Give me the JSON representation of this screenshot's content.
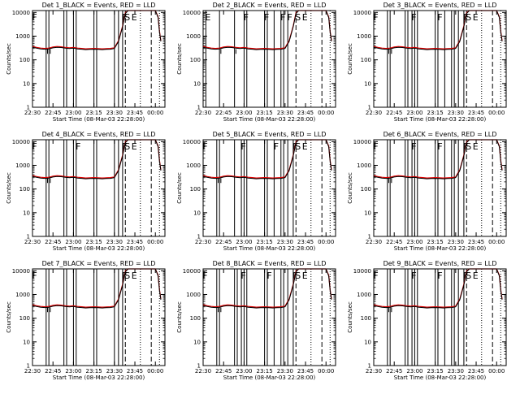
{
  "chart_data": {
    "type": "line",
    "layout": "3x3 grid",
    "shared": {
      "x_ticks": [
        "22:30",
        "22:45",
        "23:00",
        "23:15",
        "23:30",
        "23:45",
        "00:00"
      ],
      "x_tick_values": [
        0,
        15,
        30,
        45,
        60,
        75,
        90
      ],
      "xlim": [
        0,
        97
      ],
      "xlabel": "Start Time (08-Mar-03 22:28:00)",
      "ylabel": "Counts/sec",
      "y_ticks": [
        "1",
        "10",
        "100",
        "1000",
        "10000"
      ],
      "y_tick_values": [
        1,
        10,
        100,
        1000,
        10000
      ],
      "ylim": [
        1,
        12000
      ],
      "yscale": "log",
      "legend": "BLACK = Events, RED = LLD",
      "series_colors": {
        "events": "#000000",
        "lld": "#dd0000"
      },
      "events": {
        "x": [
          0,
          3,
          6,
          9,
          12,
          15,
          18,
          21,
          24,
          27,
          30,
          33,
          36,
          39,
          42,
          45,
          48,
          51,
          54,
          57,
          60,
          63,
          66,
          68,
          70,
          72,
          73,
          74,
          80,
          81,
          82,
          84,
          86,
          88,
          90,
          92,
          93,
          94
        ],
        "y": [
          340,
          310,
          290,
          280,
          290,
          320,
          340,
          330,
          310,
          300,
          310,
          290,
          280,
          270,
          275,
          280,
          275,
          270,
          275,
          280,
          300,
          600,
          2500,
          9000,
          12000,
          12000,
          12000,
          12000,
          12000,
          12000,
          12000,
          12000,
          12000,
          12000,
          12000,
          6000,
          1500,
          600
        ]
      }
    },
    "panels": [
      {
        "title": "Det 1",
        "flags": [
          "F",
          "F",
          "S",
          "E"
        ],
        "solid_lines": [
          0,
          10,
          12,
          23,
          25,
          30,
          32,
          45,
          47,
          60,
          63,
          66
        ],
        "dashed_lines": [
          68,
          87
        ],
        "dotted_lines": [
          79,
          93
        ]
      },
      {
        "title": "Det 2",
        "flags": [
          "E",
          "F",
          "F",
          "F",
          "F",
          "S",
          "E"
        ],
        "solid_lines": [
          2,
          12,
          23,
          30,
          32,
          45,
          47,
          52,
          57,
          59,
          62
        ],
        "dashed_lines": [
          68,
          87
        ],
        "dotted_lines": [
          79,
          93
        ]
      },
      {
        "title": "Det 3",
        "flags": [
          "F",
          "F",
          "F",
          "F",
          "S",
          "E"
        ],
        "solid_lines": [
          0,
          10,
          12,
          23,
          25,
          28,
          30,
          32,
          45,
          47,
          52,
          57,
          59,
          62,
          66
        ],
        "dashed_lines": [
          68,
          87
        ],
        "dotted_lines": [
          79,
          93
        ]
      },
      {
        "title": "Det 4",
        "flags": [
          "F",
          "F",
          "F",
          "S",
          "E"
        ],
        "solid_lines": [
          0,
          10,
          12,
          23,
          25,
          30,
          32,
          45,
          47,
          60,
          63,
          66
        ],
        "dashed_lines": [
          68,
          87
        ],
        "dotted_lines": [
          79,
          93
        ]
      },
      {
        "title": "Det 5",
        "flags": [
          "F",
          "F",
          "F",
          "F",
          "S",
          "E"
        ],
        "solid_lines": [
          0,
          10,
          12,
          23,
          28,
          30,
          32,
          45,
          47,
          52,
          57,
          59,
          62,
          66
        ],
        "dashed_lines": [
          68,
          87
        ],
        "dotted_lines": [
          79,
          93
        ]
      },
      {
        "title": "Det 6",
        "flags": [
          "F",
          "F",
          "F",
          "F",
          "S",
          "E"
        ],
        "solid_lines": [
          0,
          10,
          12,
          23,
          25,
          28,
          30,
          32,
          45,
          47,
          52,
          57,
          59,
          62,
          66
        ],
        "dashed_lines": [
          68,
          87
        ],
        "dotted_lines": [
          79,
          93
        ]
      },
      {
        "title": "Det 7",
        "flags": [
          "F",
          "F",
          "S",
          "E"
        ],
        "solid_lines": [
          0,
          10,
          12,
          23,
          25,
          30,
          32,
          45,
          47,
          60,
          63,
          66
        ],
        "dashed_lines": [
          68,
          87
        ],
        "dotted_lines": [
          79,
          93
        ]
      },
      {
        "title": "Det 8",
        "flags": [
          "F",
          "F",
          "F",
          "F",
          "S",
          "E"
        ],
        "solid_lines": [
          0,
          10,
          12,
          23,
          25,
          28,
          30,
          32,
          45,
          47,
          52,
          57,
          59,
          62,
          66
        ],
        "dashed_lines": [
          68,
          87
        ],
        "dotted_lines": [
          79,
          93
        ]
      },
      {
        "title": "Det 9",
        "flags": [
          "F",
          "F",
          "F",
          "F",
          "S",
          "E"
        ],
        "solid_lines": [
          0,
          10,
          12,
          23,
          25,
          28,
          30,
          32,
          45,
          47,
          52,
          57,
          59,
          62,
          66
        ],
        "dashed_lines": [
          68,
          87
        ],
        "dotted_lines": [
          79,
          93
        ]
      }
    ]
  }
}
